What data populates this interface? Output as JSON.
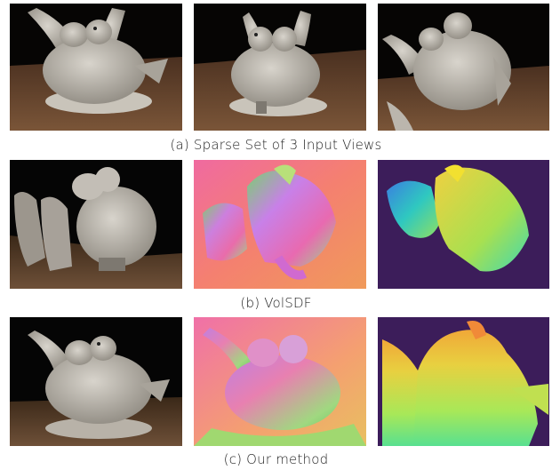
{
  "figure": {
    "rows": [
      {
        "caption": "(a) Sparse Set of 3 Input Views",
        "panels": [
          {
            "kind": "photo",
            "subject": "pigeon-sculpture-view-1"
          },
          {
            "kind": "photo",
            "subject": "pigeon-sculpture-view-2"
          },
          {
            "kind": "photo",
            "subject": "pigeon-sculpture-view-3"
          }
        ]
      },
      {
        "caption": "(b) VolSDF",
        "panels": [
          {
            "kind": "render",
            "subject": "rgb-render"
          },
          {
            "kind": "normal-map",
            "subject": "normal-map"
          },
          {
            "kind": "depth-map",
            "subject": "depth-map"
          }
        ]
      },
      {
        "caption": "(c) Our method",
        "panels": [
          {
            "kind": "render",
            "subject": "rgb-render"
          },
          {
            "kind": "normal-map",
            "subject": "normal-map"
          },
          {
            "kind": "depth-map",
            "subject": "depth-map"
          }
        ]
      }
    ],
    "colors": {
      "background_black": "#050505",
      "table_brown": "#6b4a30",
      "sculpture_gray": "#b9b4ac",
      "normal_pink": "#f07888",
      "depth_purple": "#3c1d5a",
      "depth_yellow": "#d8e03c"
    }
  }
}
